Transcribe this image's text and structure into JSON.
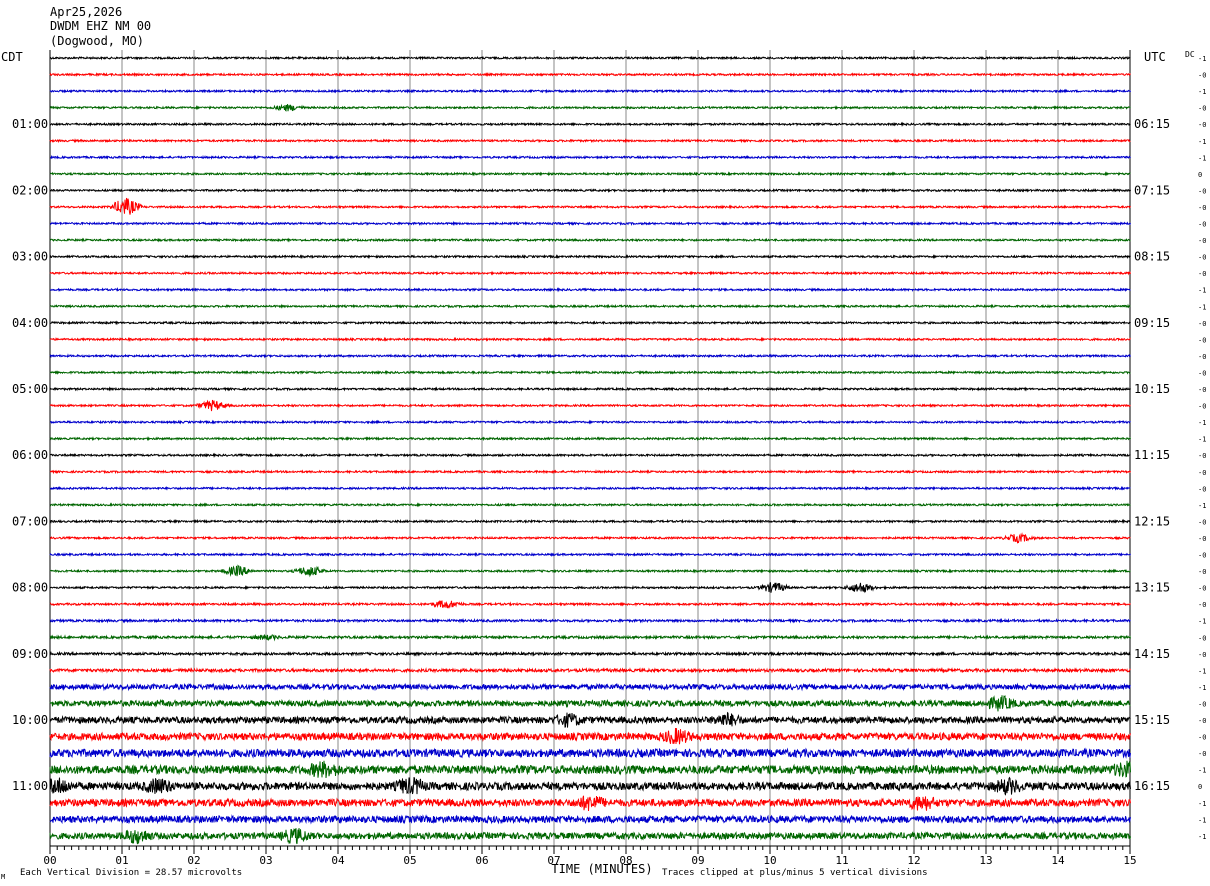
{
  "header": {
    "date": "Apr25,2026",
    "station": "DWDM EHZ NM 00",
    "location": "(Dogwood, MO)"
  },
  "left_timezone": "CDT",
  "right_timezone": "UTC",
  "dc_label": "DC",
  "footer": {
    "scale_note": "Each Vertical Division =   28.57 microvolts",
    "clip_note": "Traces clipped at plus/minus 5 vertical divisions",
    "corner_mark": "M"
  },
  "colors": {
    "trace_cycle": [
      "#000000",
      "#ff0000",
      "#0000cc",
      "#006600"
    ],
    "grid": "#888888",
    "frame": "#000000"
  },
  "chart_data": {
    "type": "line",
    "subtype": "helicorder",
    "xlabel": "TIME (MINUTES)",
    "xlim": [
      0,
      15
    ],
    "x_tick_labels": [
      "00",
      "01",
      "02",
      "03",
      "04",
      "05",
      "06",
      "07",
      "08",
      "09",
      "10",
      "11",
      "12",
      "13",
      "14",
      "15"
    ],
    "trace_count": 48,
    "minutes_per_trace": 15,
    "left_hour_labels": [
      "01:00",
      "02:00",
      "03:00",
      "04:00",
      "05:00",
      "06:00",
      "07:00",
      "08:00",
      "09:00",
      "10:00",
      "11:00"
    ],
    "right_hour_labels": [
      "06:15",
      "07:15",
      "08:15",
      "09:15",
      "10:15",
      "11:15",
      "12:15",
      "13:15",
      "14:15",
      "15:15",
      "16:15"
    ],
    "hour_label_trace_indices": [
      4,
      8,
      12,
      16,
      20,
      24,
      28,
      32,
      36,
      40,
      44
    ],
    "dc_offsets": [
      "-1",
      "-0",
      "-1",
      "-0",
      "-0",
      "-1",
      "-1",
      "0",
      "-0",
      "-0",
      "-0",
      "-0",
      "-0",
      "-0",
      "-1",
      "-1",
      "-0",
      "-0",
      "-0",
      "-0",
      "-0",
      "-0",
      "-1",
      "-1",
      "-0",
      "-0",
      "-0",
      "-1",
      "-0",
      "-0",
      "-0",
      "-0",
      "-0",
      "-0",
      "-1",
      "-0",
      "-0",
      "-1",
      "-1",
      "-0",
      "-0",
      "-0",
      "-0",
      "-1",
      "0",
      "-1",
      "-1",
      "-1"
    ],
    "trace_noise_levels": [
      1,
      1,
      1,
      1,
      1,
      1,
      1,
      1,
      1,
      1,
      1,
      1,
      1,
      1,
      1,
      1,
      1,
      1,
      1,
      1,
      1,
      1,
      1,
      1,
      1,
      1,
      1,
      1,
      1,
      1,
      1,
      1,
      1,
      1.1,
      1.2,
      1.3,
      1.3,
      1.6,
      2.8,
      3.2,
      3.6,
      3.9,
      4.4,
      4.6,
      4.2,
      4.0,
      3.8,
      3.5
    ],
    "events": [
      {
        "trace": 3,
        "minute": 3.3,
        "amplitude": 3
      },
      {
        "trace": 9,
        "minute": 1.05,
        "amplitude": 9
      },
      {
        "trace": 21,
        "minute": 2.25,
        "amplitude": 5
      },
      {
        "trace": 29,
        "minute": 13.45,
        "amplitude": 4
      },
      {
        "trace": 31,
        "minute": 2.6,
        "amplitude": 5
      },
      {
        "trace": 31,
        "minute": 3.6,
        "amplitude": 5
      },
      {
        "trace": 32,
        "minute": 10.05,
        "amplitude": 5
      },
      {
        "trace": 32,
        "minute": 11.25,
        "amplitude": 5
      },
      {
        "trace": 33,
        "minute": 5.5,
        "amplitude": 4
      },
      {
        "trace": 35,
        "minute": 3.0,
        "amplitude": 2
      },
      {
        "trace": 39,
        "minute": 13.2,
        "amplitude": 6
      },
      {
        "trace": 40,
        "minute": 7.2,
        "amplitude": 5
      },
      {
        "trace": 40,
        "minute": 9.4,
        "amplitude": 5
      },
      {
        "trace": 41,
        "minute": 8.7,
        "amplitude": 6
      },
      {
        "trace": 43,
        "minute": 3.8,
        "amplitude": 7
      },
      {
        "trace": 43,
        "minute": 14.95,
        "amplitude": 6
      },
      {
        "trace": 44,
        "minute": 0.05,
        "amplitude": 12
      },
      {
        "trace": 44,
        "minute": 1.5,
        "amplitude": 6
      },
      {
        "trace": 44,
        "minute": 5.0,
        "amplitude": 8
      },
      {
        "trace": 44,
        "minute": 13.3,
        "amplitude": 6
      },
      {
        "trace": 45,
        "minute": 7.5,
        "amplitude": 6
      },
      {
        "trace": 45,
        "minute": 12.1,
        "amplitude": 6
      },
      {
        "trace": 47,
        "minute": 1.2,
        "amplitude": 6
      },
      {
        "trace": 47,
        "minute": 3.4,
        "amplitude": 6
      }
    ]
  }
}
